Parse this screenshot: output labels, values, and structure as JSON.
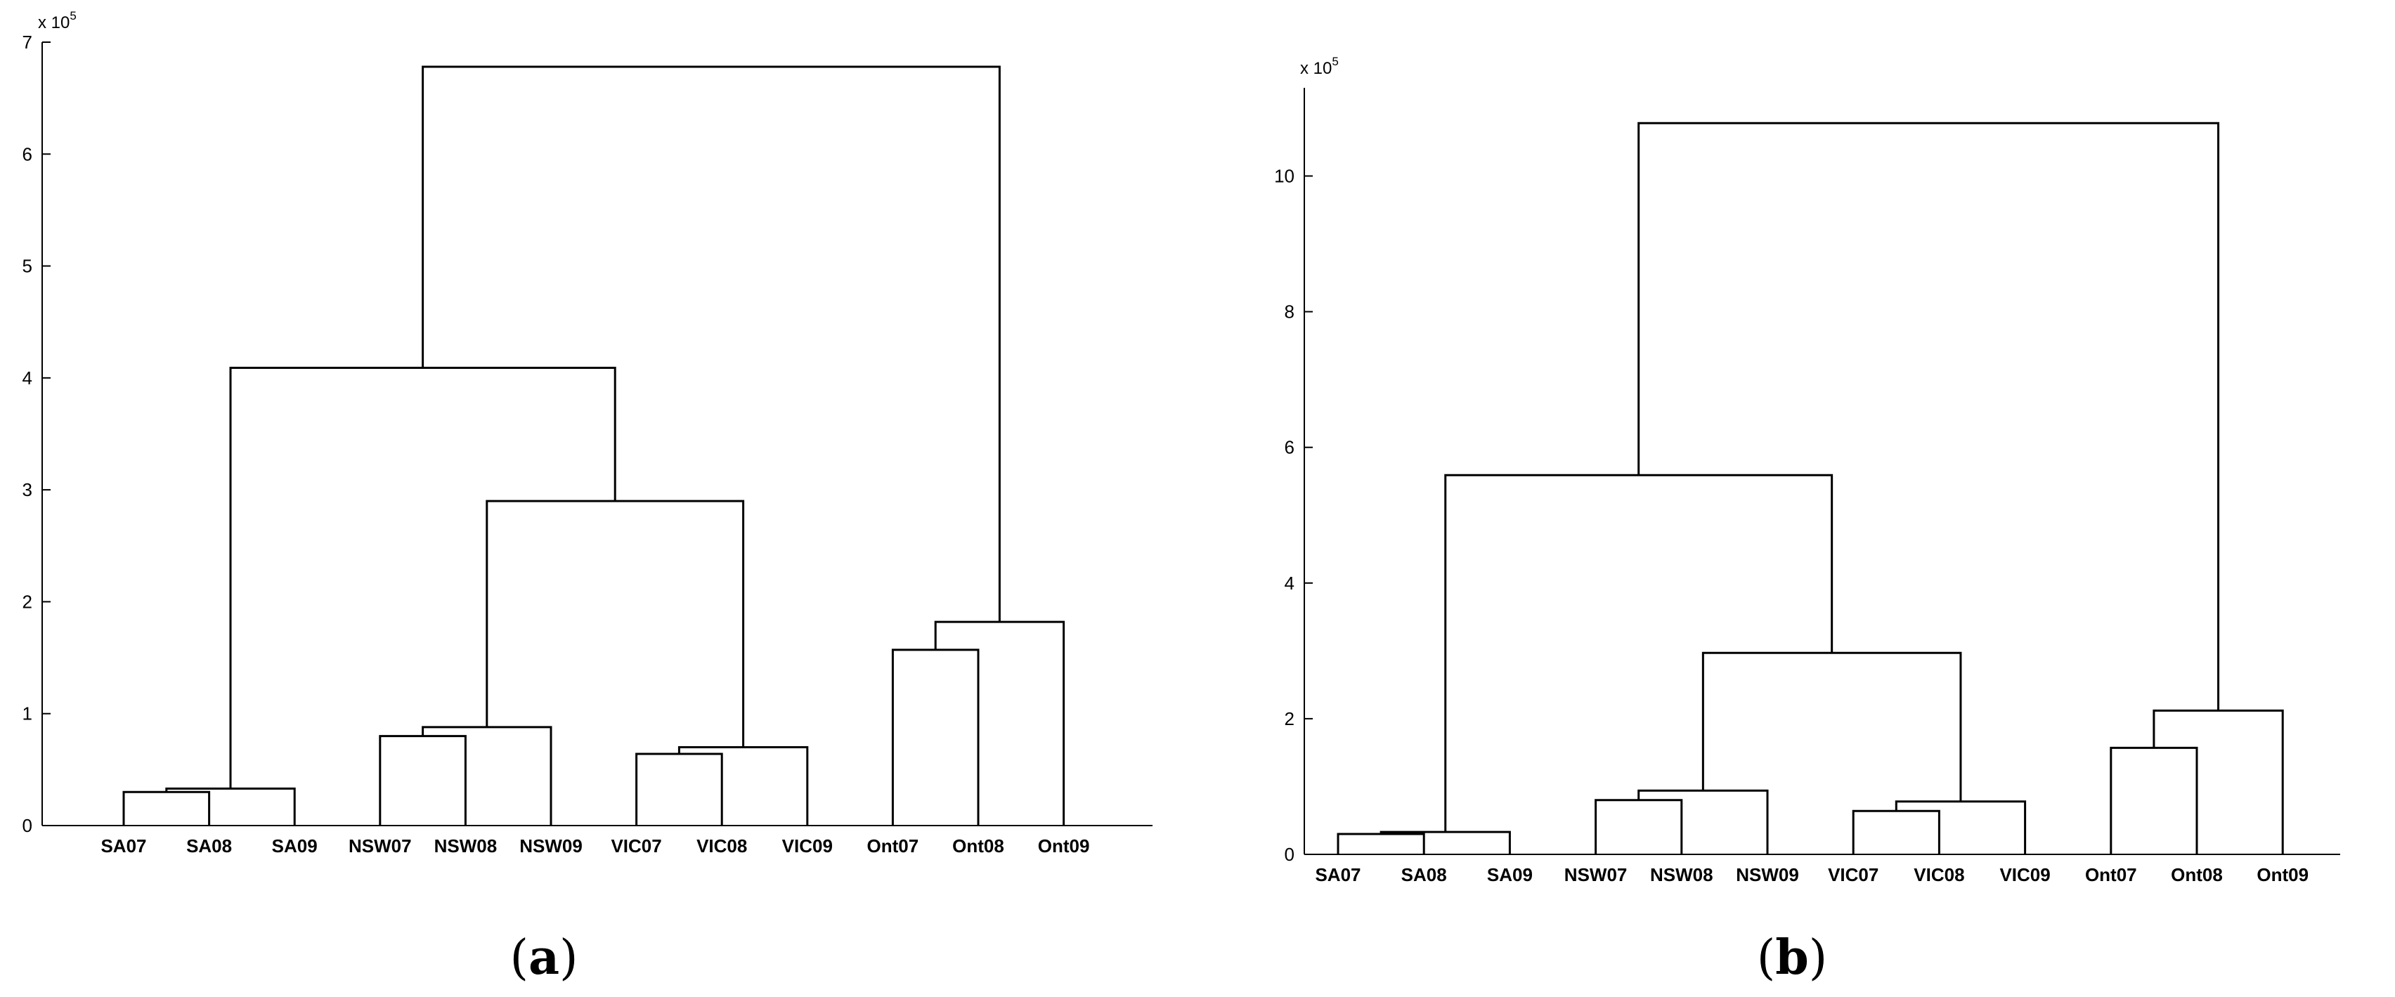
{
  "chart_data": [
    {
      "type": "dendrogram",
      "panel_label": "(a)",
      "caption_parts": [
        "(",
        "a",
        ")"
      ],
      "exponent_label": [
        "x 10",
        "5"
      ],
      "ylim": [
        0,
        7
      ],
      "y_ticks": [
        0,
        1,
        2,
        3,
        4,
        5,
        6,
        7
      ],
      "y_tick_labels": [
        "0",
        "1",
        "2",
        "3",
        "4",
        "5",
        "6",
        "7"
      ],
      "leaves": [
        "SA07",
        "SA08",
        "SA09",
        "NSW07",
        "NSW08",
        "NSW09",
        "VIC07",
        "VIC08",
        "VIC09",
        "Ont07",
        "Ont08",
        "Ont09"
      ],
      "merges": [
        {
          "id": "m1",
          "a": "SA07",
          "b": "SA08",
          "height": 0.3
        },
        {
          "id": "m2",
          "a": "m1",
          "b": "SA09",
          "height": 0.33
        },
        {
          "id": "m3",
          "a": "NSW07",
          "b": "NSW08",
          "height": 0.8
        },
        {
          "id": "m4",
          "a": "m3",
          "b": "NSW09",
          "height": 0.88
        },
        {
          "id": "m5",
          "a": "VIC07",
          "b": "VIC08",
          "height": 0.64
        },
        {
          "id": "m6",
          "a": "m5",
          "b": "VIC09",
          "height": 0.7
        },
        {
          "id": "m7",
          "a": "m4",
          "b": "m6",
          "height": 2.9
        },
        {
          "id": "m8",
          "a": "m2",
          "b": "m7",
          "height": 4.09
        },
        {
          "id": "m9",
          "a": "Ont07",
          "b": "Ont08",
          "height": 1.57
        },
        {
          "id": "m10",
          "a": "m9",
          "b": "Ont09",
          "height": 1.82
        },
        {
          "id": "m11",
          "a": "m8",
          "b": "m10",
          "height": 6.78
        }
      ]
    },
    {
      "type": "dendrogram",
      "panel_label": "(b)",
      "caption_parts": [
        "(",
        "b",
        ")"
      ],
      "exponent_label": [
        "x 10",
        "5"
      ],
      "ylim": [
        0,
        11.3
      ],
      "y_ticks": [
        0,
        2,
        4,
        6,
        8,
        10
      ],
      "y_tick_labels": [
        "0",
        "2",
        "4",
        "6",
        "8",
        "10"
      ],
      "leaves": [
        "SA07",
        "SA08",
        "SA09",
        "NSW07",
        "NSW08",
        "NSW09",
        "VIC07",
        "VIC08",
        "VIC09",
        "Ont07",
        "Ont08",
        "Ont09"
      ],
      "merges": [
        {
          "id": "m1",
          "a": "SA07",
          "b": "SA08",
          "height": 0.3
        },
        {
          "id": "m2",
          "a": "m1",
          "b": "SA09",
          "height": 0.33
        },
        {
          "id": "m3",
          "a": "NSW07",
          "b": "NSW08",
          "height": 0.8
        },
        {
          "id": "m4",
          "a": "m3",
          "b": "NSW09",
          "height": 0.94
        },
        {
          "id": "m5",
          "a": "VIC07",
          "b": "VIC08",
          "height": 0.64
        },
        {
          "id": "m6",
          "a": "m5",
          "b": "VIC09",
          "height": 0.78
        },
        {
          "id": "m7",
          "a": "m4",
          "b": "m6",
          "height": 2.97
        },
        {
          "id": "m8",
          "a": "m2",
          "b": "m7",
          "height": 5.59
        },
        {
          "id": "m9",
          "a": "Ont07",
          "b": "Ont08",
          "height": 1.57
        },
        {
          "id": "m10",
          "a": "m9",
          "b": "Ont09",
          "height": 2.12
        },
        {
          "id": "m11",
          "a": "m8",
          "b": "m10",
          "height": 10.78
        }
      ]
    }
  ]
}
